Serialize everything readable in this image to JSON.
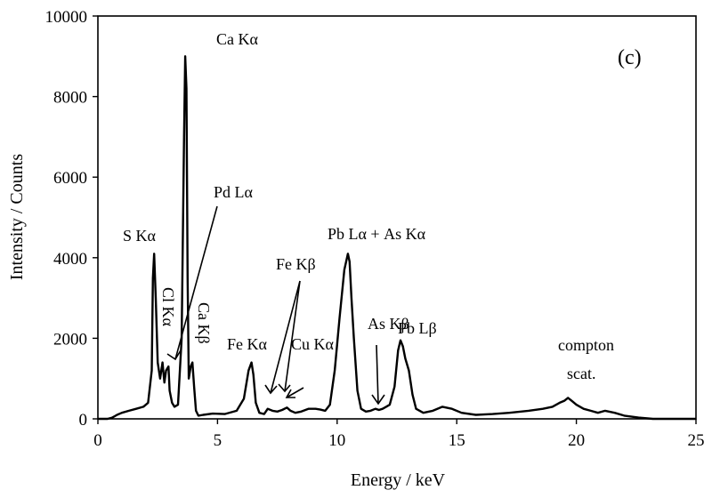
{
  "chart_data": {
    "type": "line",
    "panel_label": "(c)",
    "xlabel": "Energy / keV",
    "ylabel": "Intensity / Counts",
    "xlim": [
      0,
      25
    ],
    "ylim": [
      0,
      10000
    ],
    "x_ticks": [
      0,
      5,
      10,
      15,
      20,
      25
    ],
    "y_ticks": [
      0,
      2000,
      4000,
      6000,
      8000,
      10000
    ],
    "grid": false,
    "series": [
      {
        "x": [
          0.0,
          0.4,
          0.6,
          0.8,
          1.0,
          1.3,
          1.6,
          1.9,
          2.1,
          2.25,
          2.3,
          2.35,
          2.42,
          2.5,
          2.6,
          2.7,
          2.78,
          2.85,
          2.95,
          3.0,
          3.1,
          3.2,
          3.35,
          3.5,
          3.6,
          3.65,
          3.7,
          3.75,
          3.8,
          3.88,
          3.95,
          4.02,
          4.1,
          4.2,
          4.4,
          4.8,
          5.3,
          5.8,
          6.1,
          6.3,
          6.42,
          6.5,
          6.6,
          6.75,
          6.95,
          7.1,
          7.3,
          7.5,
          7.7,
          7.9,
          8.05,
          8.25,
          8.5,
          8.8,
          9.1,
          9.3,
          9.5,
          9.7,
          9.9,
          10.1,
          10.3,
          10.45,
          10.52,
          10.6,
          10.7,
          10.85,
          11.0,
          11.2,
          11.4,
          11.6,
          11.75,
          11.9,
          12.05,
          12.2,
          12.4,
          12.55,
          12.65,
          12.75,
          12.85,
          13.0,
          13.15,
          13.3,
          13.6,
          14.0,
          14.4,
          14.8,
          15.2,
          15.8,
          16.5,
          17.2,
          18.0,
          18.6,
          19.0,
          19.3,
          19.5,
          19.65,
          19.8,
          20.0,
          20.3,
          20.6,
          20.9,
          21.2,
          21.6,
          22.0,
          22.6,
          23.2,
          24.0,
          24.6,
          25.0
        ],
        "values": [
          0,
          0,
          30,
          100,
          150,
          200,
          250,
          300,
          400,
          1200,
          3500,
          4100,
          3000,
          1400,
          1000,
          1400,
          900,
          1200,
          1300,
          700,
          400,
          300,
          350,
          2000,
          7000,
          9000,
          8200,
          3500,
          1000,
          1300,
          1400,
          800,
          200,
          80,
          100,
          130,
          120,
          200,
          500,
          1200,
          1400,
          1100,
          400,
          150,
          120,
          250,
          200,
          180,
          220,
          280,
          200,
          150,
          180,
          250,
          250,
          230,
          200,
          350,
          1200,
          2500,
          3700,
          4100,
          3900,
          3000,
          2000,
          700,
          250,
          180,
          200,
          250,
          220,
          250,
          300,
          350,
          800,
          1700,
          1950,
          1800,
          1500,
          1200,
          600,
          250,
          150,
          200,
          300,
          250,
          150,
          100,
          120,
          150,
          200,
          250,
          300,
          400,
          450,
          520,
          450,
          350,
          250,
          200,
          150,
          200,
          150,
          80,
          30,
          0,
          0,
          0,
          0
        ]
      }
    ],
    "annotations": [
      {
        "text": "Ca Kα"
      },
      {
        "text": "S Kα"
      },
      {
        "text": "Pd Lα"
      },
      {
        "text": "Cl Kα"
      },
      {
        "text": "Ca Kβ"
      },
      {
        "text": "Fe Kα"
      },
      {
        "text": "Fe Kβ"
      },
      {
        "text": "Cu Kα"
      },
      {
        "text": "Pb Lα + As Kα"
      },
      {
        "text": "As Kβ"
      },
      {
        "text": "Pb Lβ"
      },
      {
        "text": "compton"
      },
      {
        "text": "scat."
      }
    ]
  }
}
